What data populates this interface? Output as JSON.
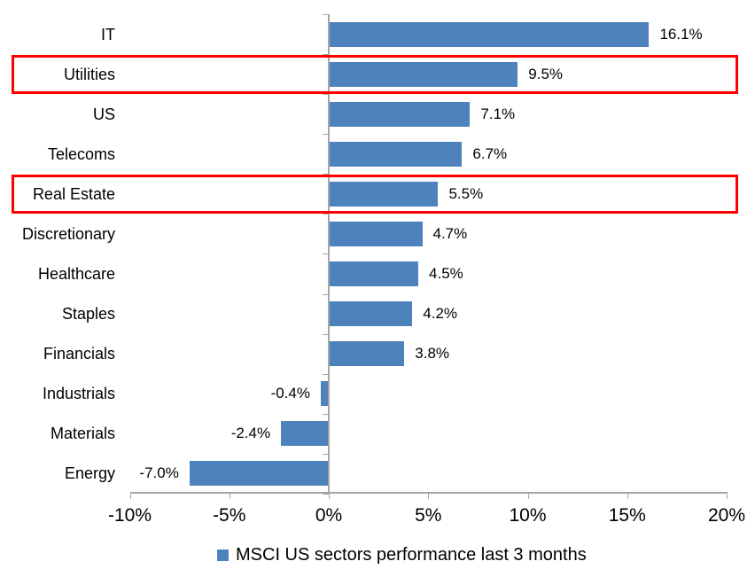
{
  "chart_data": {
    "type": "bar",
    "orientation": "horizontal",
    "categories": [
      "IT",
      "Utilities",
      "US",
      "Telecoms",
      "Real Estate",
      "Discretionary",
      "Healthcare",
      "Staples",
      "Financials",
      "Industrials",
      "Materials",
      "Energy"
    ],
    "values": [
      16.1,
      9.5,
      7.1,
      6.7,
      5.5,
      4.7,
      4.5,
      4.2,
      3.8,
      -0.4,
      -2.4,
      -7.0
    ],
    "value_labels": [
      "16.1%",
      "9.5%",
      "7.1%",
      "6.7%",
      "5.5%",
      "4.7%",
      "4.5%",
      "4.2%",
      "3.8%",
      "-0.4%",
      "-2.4%",
      "-7.0%"
    ],
    "x_ticks": [
      -10,
      -5,
      0,
      5,
      10,
      15,
      20
    ],
    "x_tick_labels": [
      "-10%",
      "-5%",
      "0%",
      "5%",
      "10%",
      "15%",
      "20%"
    ],
    "xlim": [
      -10,
      20
    ],
    "grid": false,
    "legend": "MSCI US sectors performance last 3 months",
    "legend_position": "bottom",
    "highlighted_categories": [
      "Utilities",
      "Real Estate"
    ],
    "colors": {
      "bar": "#4e82bc",
      "axis": "#a6a6a6",
      "highlight": "#ff0000",
      "text": "#000000"
    }
  }
}
